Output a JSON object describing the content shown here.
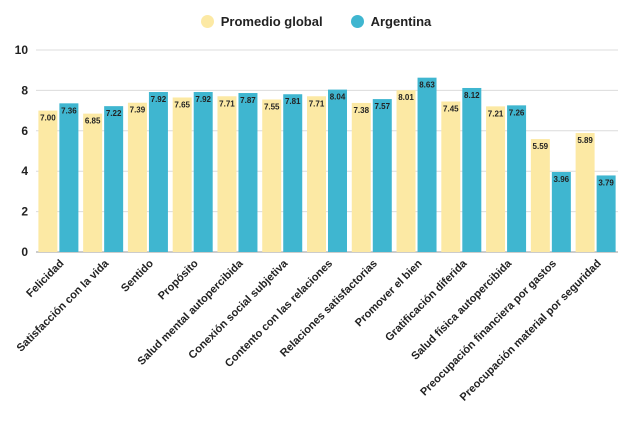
{
  "chart_data": {
    "type": "bar",
    "categories": [
      "Felicidad",
      "Satisfacción con la vida",
      "Sentido",
      "Propósito",
      "Salud mental autopercibida",
      "Conexión social subjetiva",
      "Contento con las relaciones",
      "Relaciones satisfactorias",
      "Promover el bien",
      "Gratificación diferida",
      "Salud física autopercibida",
      "Preocupación financiera por gastos",
      "Preocupación material por seguridad"
    ],
    "series": [
      {
        "name": "Promedio global",
        "color": "#FCE9A4",
        "values": [
          7.0,
          6.85,
          7.39,
          7.65,
          7.71,
          7.55,
          7.71,
          7.38,
          8.01,
          7.45,
          7.21,
          5.59,
          5.89
        ],
        "labels": [
          "7.00",
          "6.85",
          "7.39",
          "7.65",
          "7.71",
          "7.55",
          "7.71",
          "7.38",
          "8.01",
          "7.45",
          "7.21",
          "5.59",
          "5.89"
        ]
      },
      {
        "name": "Argentina",
        "color": "#3FB6D0",
        "values": [
          7.36,
          7.22,
          7.92,
          7.92,
          7.87,
          7.81,
          8.04,
          7.57,
          8.63,
          8.12,
          7.26,
          3.96,
          3.79
        ],
        "labels": [
          "7.36",
          "7.22",
          "7.92",
          "7.92",
          "7.87",
          "7.81",
          "8.04",
          "7.57",
          "8.63",
          "8.12",
          "7.26",
          "3.96",
          "3.79"
        ]
      }
    ],
    "yticks": [
      "0",
      "2",
      "4",
      "6",
      "8",
      "10"
    ],
    "ylim": [
      0,
      10
    ],
    "grid": true,
    "legend_position": "top-center"
  }
}
